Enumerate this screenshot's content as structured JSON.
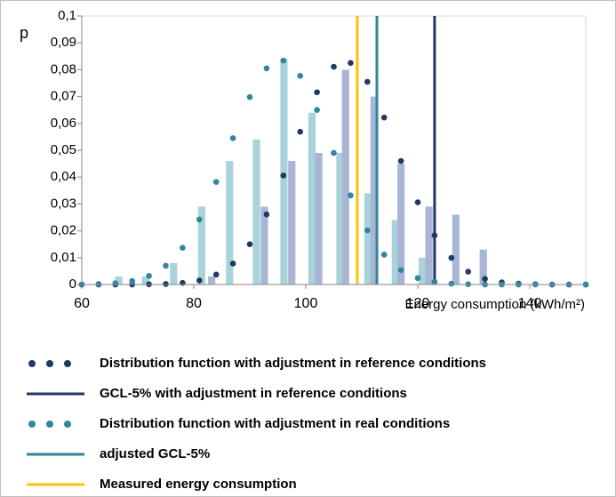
{
  "chart_data": {
    "type": "bar",
    "y_label": "p",
    "x_label": "Energy consumption (kWh/m²)",
    "xlim": [
      60,
      150
    ],
    "xticks": [
      60,
      80,
      100,
      120,
      140
    ],
    "ylim": [
      0,
      0.1
    ],
    "yticks": [
      0,
      {
        "value": 0.01,
        "label": "0,01"
      },
      {
        "value": 0.02,
        "label": "0,02"
      },
      {
        "value": 0.03,
        "label": "0,03"
      },
      {
        "value": 0.04,
        "label": "0,04"
      },
      {
        "value": 0.05,
        "label": "0,05"
      },
      {
        "value": 0.06,
        "label": "0,06"
      },
      {
        "value": 0.07,
        "label": "0,07"
      },
      {
        "value": 0.08,
        "label": "0,08"
      },
      {
        "value": 0.09,
        "label": "0,09"
      },
      {
        "value": 0.1,
        "label": "0,1"
      }
    ],
    "series": [
      {
        "type": "bar",
        "color": "#a8d3d9",
        "x": [
          66.6,
          71.4,
          76.4,
          81.4,
          86.4,
          91.2,
          96.1,
          101.1,
          106.1,
          111.1,
          116,
          120.8
        ],
        "values": [
          0.003,
          0.003,
          0.008,
          0.029,
          0.046,
          0.054,
          0.084,
          0.064,
          0.049,
          0.034,
          0.024,
          0.01
        ]
      },
      {
        "type": "bar",
        "color": "#a9b5d5",
        "x": [
          83.2,
          92.6,
          97.5,
          102.3,
          107.1,
          112.2,
          117,
          122,
          126.8,
          131.7
        ],
        "values": [
          0.003,
          0.029,
          0.046,
          0.049,
          0.08,
          0.07,
          0.045,
          0.029,
          0.026,
          0.013
        ]
      },
      {
        "type": "dots",
        "name": "Distribution function with adjustment in reference conditions",
        "color": "#1f3864",
        "x": [
          60,
          63,
          66,
          69,
          72,
          75,
          78,
          81,
          84,
          87,
          90,
          93,
          96,
          99,
          102,
          105,
          108,
          111,
          114,
          117,
          120,
          123,
          126,
          129,
          132,
          135,
          138,
          141,
          144,
          147,
          150
        ],
        "values": [
          0,
          0,
          0,
          0,
          0.0001,
          0.0002,
          0.0006,
          0.0015,
          0.0037,
          0.0078,
          0.015,
          0.0261,
          0.0406,
          0.0569,
          0.0716,
          0.0811,
          0.0825,
          0.0755,
          0.0622,
          0.046,
          0.0306,
          0.0183,
          0.0099,
          0.0048,
          0.0021,
          0.0008,
          0.0003,
          0.0001,
          0,
          0,
          0
        ]
      },
      {
        "type": "vline",
        "name": "GCL-5% with adjustment in reference conditions",
        "color": "#1f3864",
        "x": 123
      },
      {
        "type": "dots",
        "name": "Distribution function with adjustment in real conditions",
        "color": "#31859c",
        "x": [
          60,
          63,
          66,
          69,
          72,
          75,
          78,
          81,
          84,
          87,
          90,
          93,
          96,
          99,
          102,
          105,
          108,
          111,
          114,
          117,
          120,
          123,
          126,
          129,
          132,
          135,
          138,
          141,
          144,
          147,
          150
        ],
        "values": [
          0,
          0.0002,
          0.0005,
          0.0013,
          0.0032,
          0.007,
          0.0137,
          0.0242,
          0.0382,
          0.0545,
          0.0698,
          0.0805,
          0.0834,
          0.0777,
          0.065,
          0.049,
          0.0332,
          0.0202,
          0.0111,
          0.0054,
          0.0024,
          0.001,
          0.0003,
          0.0001,
          0,
          0,
          0,
          0,
          0,
          0,
          0
        ]
      },
      {
        "type": "vline",
        "name": "adjusted GCL-5%",
        "color": "#31849b",
        "x": 112.7
      },
      {
        "type": "vline",
        "name": "Measured energy consumption",
        "color": "#ffc000",
        "x": 109.2
      }
    ]
  }
}
